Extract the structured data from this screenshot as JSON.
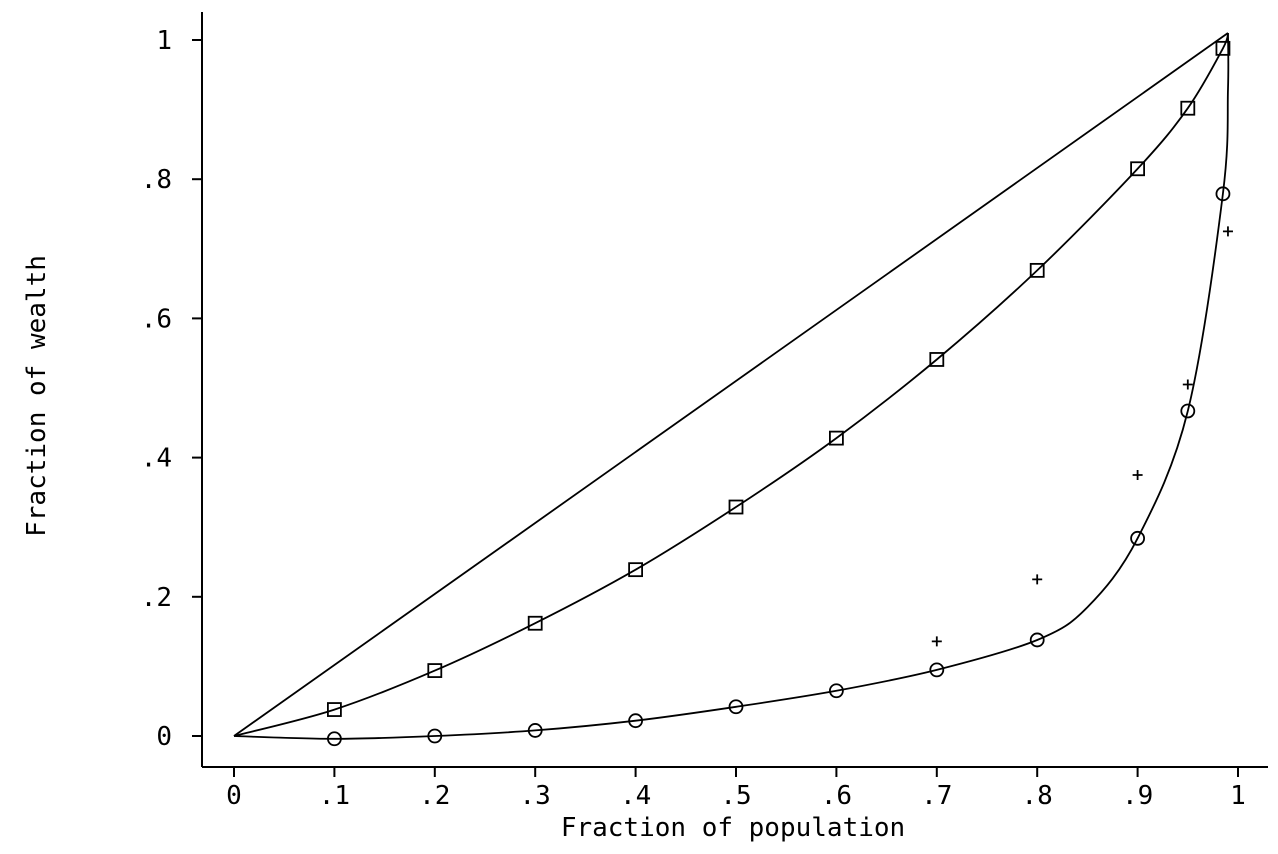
{
  "chart_data": {
    "type": "line",
    "title": "",
    "xlabel": "Fraction of population",
    "ylabel": "Fraction of wealth",
    "xlim": [
      0,
      1
    ],
    "ylim": [
      0,
      1
    ],
    "grid": false,
    "x_ticks": [
      0,
      0.1,
      0.2,
      0.3,
      0.4,
      0.5,
      0.6,
      0.7,
      0.8,
      0.9,
      1
    ],
    "x_tick_labels": [
      "0",
      ".1",
      ".2",
      ".3",
      ".4",
      ".5",
      ".6",
      ".7",
      ".8",
      ".9",
      "1"
    ],
    "y_ticks": [
      0,
      0.2,
      0.4,
      0.6,
      0.8,
      1
    ],
    "y_tick_labels": [
      "0",
      ".2",
      ".4",
      ".6",
      ".8",
      "1"
    ],
    "series": [
      {
        "marker": "none",
        "line": true,
        "x": [
          0,
          0.99
        ],
        "y": [
          0,
          1.01
        ]
      },
      {
        "marker": "square",
        "line": true,
        "x": [
          0,
          0.1,
          0.2,
          0.3,
          0.4,
          0.5,
          0.6,
          0.7,
          0.8,
          0.9,
          0.95,
          0.985,
          0.99
        ],
        "y": [
          0,
          0.038,
          0.094,
          0.162,
          0.239,
          0.329,
          0.428,
          0.541,
          0.669,
          0.815,
          0.902,
          0.988,
          1.01
        ],
        "marker_x": [
          0.1,
          0.2,
          0.3,
          0.4,
          0.5,
          0.6,
          0.7,
          0.8,
          0.9,
          0.95,
          0.985
        ],
        "marker_y": [
          0.038,
          0.094,
          0.162,
          0.239,
          0.329,
          0.428,
          0.541,
          0.669,
          0.815,
          0.902,
          0.988
        ]
      },
      {
        "marker": "circle",
        "line": true,
        "x": [
          0,
          0.1,
          0.2,
          0.3,
          0.4,
          0.5,
          0.6,
          0.7,
          0.8,
          0.85,
          0.9,
          0.95,
          0.985,
          0.99,
          0.99
        ],
        "y": [
          0,
          -0.004,
          0.0,
          0.008,
          0.022,
          0.042,
          0.065,
          0.095,
          0.138,
          0.185,
          0.284,
          0.467,
          0.779,
          0.93,
          1.01
        ],
        "marker_x": [
          0.1,
          0.2,
          0.3,
          0.4,
          0.5,
          0.6,
          0.7,
          0.8,
          0.9,
          0.95,
          0.985
        ],
        "marker_y": [
          -0.004,
          0.0,
          0.008,
          0.022,
          0.042,
          0.065,
          0.095,
          0.138,
          0.284,
          0.467,
          0.779
        ]
      },
      {
        "marker": "plus",
        "line": false,
        "x": [
          0.7,
          0.8,
          0.9,
          0.95,
          0.99
        ],
        "y": [
          0.136,
          0.225,
          0.375,
          0.505,
          0.725
        ]
      }
    ]
  }
}
